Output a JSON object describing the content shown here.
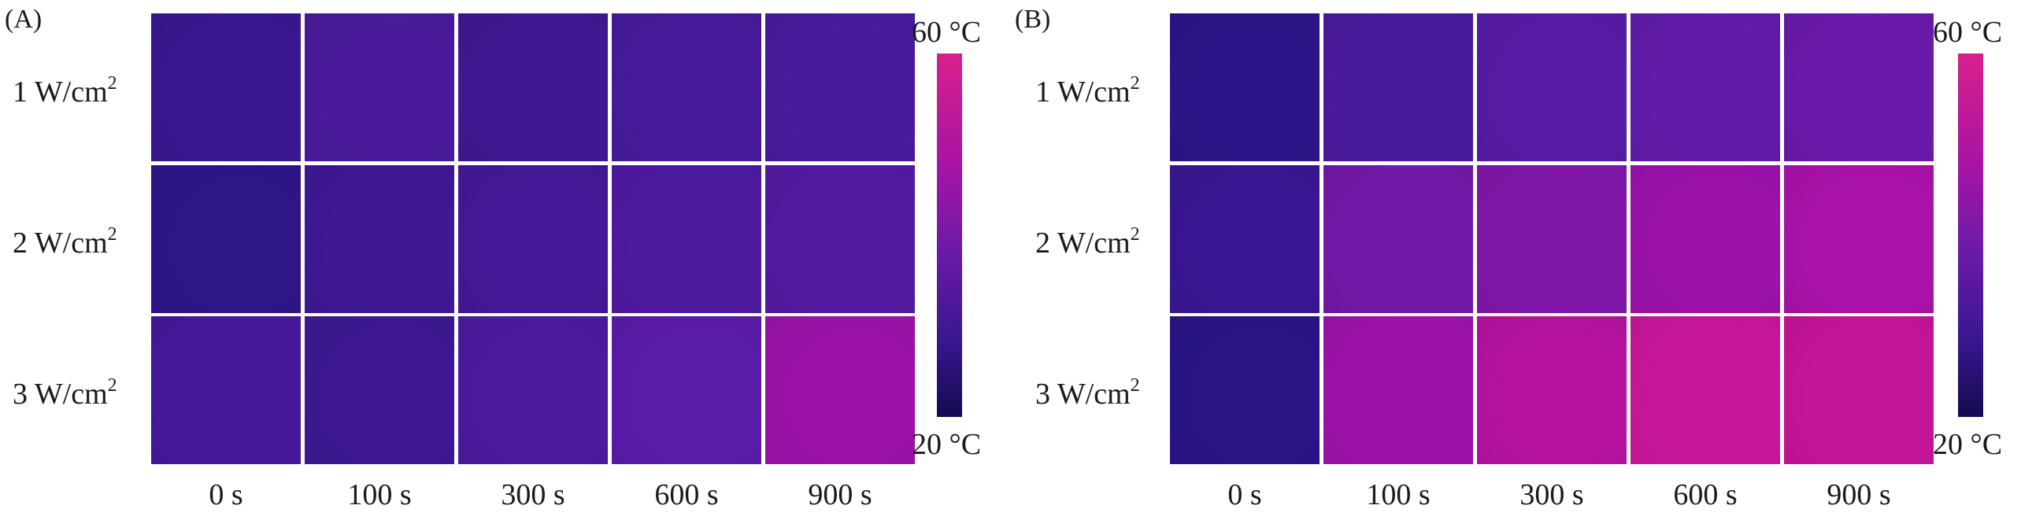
{
  "colorbar": {
    "max_label": "60 °C",
    "min_label": "20 °C"
  },
  "columns": [
    "0 s",
    "100 s",
    "300 s",
    "600 s",
    "900 s"
  ],
  "panels": [
    {
      "letter": "(A)",
      "rows": [
        {
          "label": "1 W/cm",
          "sup": "2",
          "colors": [
            "#3a1790",
            "#4a1a9a",
            "#3e1892",
            "#461a9a",
            "#481a9c"
          ]
        },
        {
          "label": "2 W/cm",
          "sup": "2",
          "colors": [
            "#2e1588",
            "#3f1894",
            "#431896",
            "#4e1aa0",
            "#531ba2"
          ]
        },
        {
          "label": "3 W/cm",
          "sup": "2",
          "colors": [
            "#45189a",
            "#3d1892",
            "#4c1a9e",
            "#5a1ba8",
            "#9a12a8"
          ]
        }
      ]
    },
    {
      "letter": "(B)",
      "rows": [
        {
          "label": "1 W/cm",
          "sup": "2",
          "colors": [
            "#2c1488",
            "#4a1a9c",
            "#561ba4",
            "#601ba8",
            "#6a1aaa"
          ]
        },
        {
          "label": "2 W/cm",
          "sup": "2",
          "colors": [
            "#3a1792",
            "#7318a8",
            "#8016a8",
            "#9a12aa",
            "#a812a8"
          ]
        },
        {
          "label": "3 W/cm",
          "sup": "2",
          "colors": [
            "#2a1486",
            "#9d12aa",
            "#b4129f",
            "#c8169a",
            "#c41498"
          ]
        }
      ]
    }
  ]
}
